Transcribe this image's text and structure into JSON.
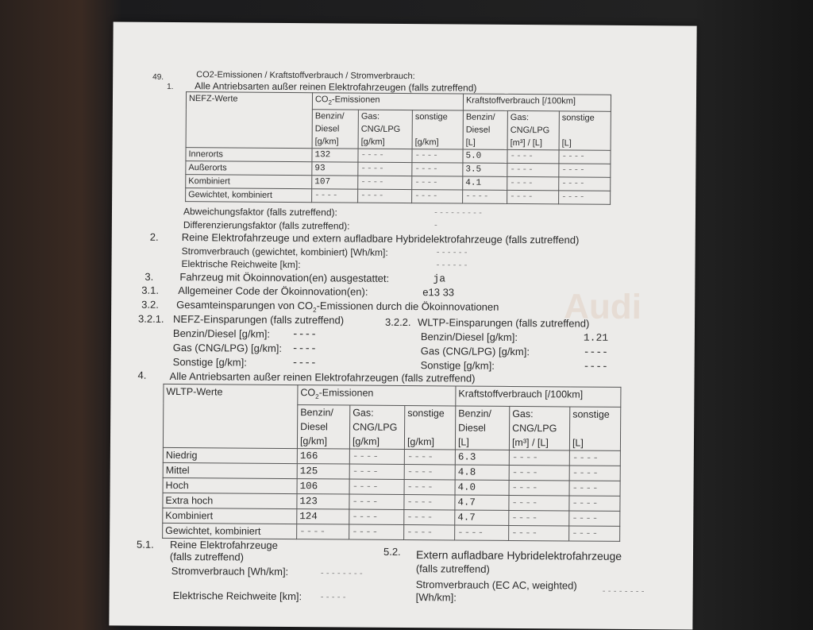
{
  "heading_num": "49.",
  "heading": "CO2-Emissionen / Kraftstoffverbrauch / Stromverbrauch:",
  "s1": {
    "num": "1.",
    "title": "Alle Antriebsarten außer reinen Elektrofahrzeugen (falls zutreffend)"
  },
  "table1": {
    "corner": "NEFZ-Werte",
    "group_co2": "CO2-Emissionen",
    "group_fuel": "Kraftstoffverbrauch [/100km]",
    "cols": [
      [
        "Benzin/",
        "Diesel",
        "[g/km]"
      ],
      [
        "Gas:",
        "CNG/LPG",
        "[g/km]"
      ],
      [
        "sonstige",
        "",
        "[g/km]"
      ],
      [
        "Benzin/",
        "Diesel",
        "[L]"
      ],
      [
        "Gas:",
        "CNG/LPG",
        "[m³] / [L]"
      ],
      [
        "sonstige",
        "",
        "[L]"
      ]
    ],
    "rows": [
      {
        "label": "Innerorts",
        "cells": [
          "132",
          "----",
          "----",
          "5.0",
          "----",
          "----"
        ]
      },
      {
        "label": "Außerorts",
        "cells": [
          "93",
          "----",
          "----",
          "3.5",
          "----",
          "----"
        ]
      },
      {
        "label": "Kombiniert",
        "cells": [
          "107",
          "----",
          "----",
          "4.1",
          "----",
          "----"
        ]
      },
      {
        "label": "Gewichtet, kombiniert",
        "cells": [
          "----",
          "----",
          "----",
          "----",
          "----",
          "----"
        ]
      }
    ]
  },
  "abweichung": {
    "label": "Abweichungsfaktor (falls zutreffend):",
    "value": "---------"
  },
  "differenz": {
    "label": "Differenzierungsfaktor (falls zutreffend):",
    "value": "-"
  },
  "s2": {
    "num": "2.",
    "title": "Reine Elektrofahrzeuge und extern aufladbare Hybridelektrofahrzeuge (falls zutreffend)",
    "strom_label": "Stromverbrauch (gewichtet, kombiniert) [Wh/km]:",
    "strom_value": "------",
    "reich_label": "Elektrische Reichweite [km]:",
    "reich_value": "------"
  },
  "s3": {
    "num": "3.",
    "label": "Fahrzeug mit Ökoinnovation(en) ausgestattet:",
    "value": "ja"
  },
  "s31": {
    "num": "3.1.",
    "label": "Allgemeiner Code der Ökoinnovation(en):",
    "value": "e13 33"
  },
  "s32": {
    "num": "3.2.",
    "label": "Gesamteinsparungen von CO2-Emissionen durch die Ökoinnovationen"
  },
  "s321": {
    "num": "3.2.1.",
    "title": "NEFZ-Einsparungen (falls zutreffend)",
    "items": [
      {
        "label": "Benzin/Diesel [g/km]:",
        "value": "----"
      },
      {
        "label": "Gas (CNG/LPG) [g/km]:",
        "value": "----"
      },
      {
        "label": "Sonstige [g/km]:",
        "value": "----"
      }
    ]
  },
  "s322": {
    "num": "3.2.2.",
    "title": "WLTP-Einsparungen (falls zutreffend)",
    "items": [
      {
        "label": "Benzin/Diesel [g/km]:",
        "value": "1.21"
      },
      {
        "label": "Gas (CNG/LPG) [g/km]:",
        "value": "----"
      },
      {
        "label": "Sonstige [g/km]:",
        "value": "----"
      }
    ]
  },
  "s4": {
    "num": "4.",
    "title": "Alle Antriebsarten außer reinen Elektrofahrzeugen (falls zutreffend)"
  },
  "table2": {
    "corner": "WLTP-Werte",
    "group_co2": "CO2-Emissionen",
    "group_fuel": "Kraftstoffverbrauch [/100km]",
    "cols": [
      [
        "Benzin/",
        "Diesel",
        "[g/km]"
      ],
      [
        "Gas:",
        "CNG/LPG",
        "[g/km]"
      ],
      [
        "sonstige",
        "",
        "[g/km]"
      ],
      [
        "Benzin/",
        "Diesel",
        "[L]"
      ],
      [
        "Gas:",
        "CNG/LPG",
        "[m³] / [L]"
      ],
      [
        "sonstige",
        "",
        "[L]"
      ]
    ],
    "rows": [
      {
        "label": "Niedrig",
        "cells": [
          "166",
          "----",
          "----",
          "6.3",
          "----",
          "----"
        ]
      },
      {
        "label": "Mittel",
        "cells": [
          "125",
          "----",
          "----",
          "4.8",
          "----",
          "----"
        ]
      },
      {
        "label": "Hoch",
        "cells": [
          "106",
          "----",
          "----",
          "4.0",
          "----",
          "----"
        ]
      },
      {
        "label": "Extra hoch",
        "cells": [
          "123",
          "----",
          "----",
          "4.7",
          "----",
          "----"
        ]
      },
      {
        "label": "Kombiniert",
        "cells": [
          "124",
          "----",
          "----",
          "4.7",
          "----",
          "----"
        ]
      },
      {
        "label": "Gewichtet, kombiniert",
        "cells": [
          "----",
          "----",
          "----",
          "----",
          "----",
          "----"
        ]
      }
    ]
  },
  "s51": {
    "num": "5.1.",
    "title": "Reine Elektrofahrzeuge",
    "sub": "(falls zutreffend)",
    "strom_label": "Stromverbrauch [Wh/km]:",
    "strom_value": "--------",
    "reich_label": "Elektrische Reichweite [km]:",
    "reich_value": "-----"
  },
  "s52": {
    "num": "5.2.",
    "title": "Extern aufladbare Hybridelektrofahrzeuge",
    "sub": "(falls zutreffend)",
    "strom_label": "Stromverbrauch (EC AC, weighted)",
    "strom_unit": "[Wh/km]:",
    "strom_value": "--------"
  },
  "watermark": "Audi"
}
